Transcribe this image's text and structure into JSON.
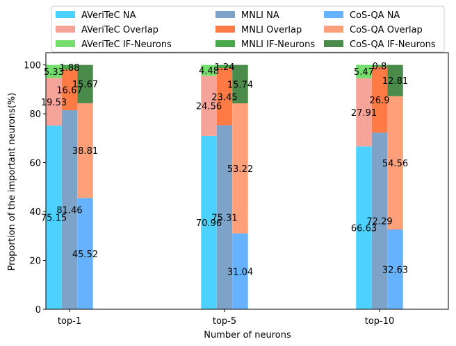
{
  "chart_data": {
    "type": "bar",
    "stacked": true,
    "xlabel": "Number of neurons",
    "ylabel": "Proportion of the important neurons(%)",
    "ylim": [
      0,
      105
    ],
    "yticks": [
      0,
      20,
      40,
      60,
      80,
      100
    ],
    "categories": [
      "top-1",
      "top-5",
      "top-10"
    ],
    "legend_position": "top",
    "groups": [
      {
        "name": "AVeriTeC",
        "segments": [
          {
            "name": "AVeriTeC NA",
            "color": "#4dd2ff",
            "values": [
              75.15,
              70.96,
              66.63
            ]
          },
          {
            "name": "AVeriTeC Overlap",
            "color": "#f6a49a",
            "values": [
              19.53,
              24.56,
              27.91
            ]
          },
          {
            "name": "AVeriTeC IF-Neurons",
            "color": "#74dd6e",
            "values": [
              5.33,
              4.48,
              5.47
            ]
          }
        ]
      },
      {
        "name": "MNLI",
        "segments": [
          {
            "name": "MNLI NA",
            "color": "#7ea3c8",
            "values": [
              81.46,
              75.31,
              72.29
            ]
          },
          {
            "name": "MNLI Overlap",
            "color": "#ff7a45",
            "values": [
              16.67,
              23.45,
              26.9
            ]
          },
          {
            "name": "MNLI IF-Neurons",
            "color": "#4aa84c",
            "values": [
              1.88,
              1.24,
              0.8
            ]
          }
        ]
      },
      {
        "name": "CoS-QA",
        "segments": [
          {
            "name": "CoS-QA NA",
            "color": "#66b2ff",
            "values": [
              45.52,
              31.04,
              32.63
            ]
          },
          {
            "name": "CoS-QA Overlap",
            "color": "#ffa07a",
            "values": [
              38.81,
              53.22,
              54.56
            ]
          },
          {
            "name": "CoS-QA IF-Neurons",
            "color": "#4a8a4a",
            "values": [
              15.67,
              15.74,
              12.81
            ]
          }
        ]
      }
    ]
  }
}
